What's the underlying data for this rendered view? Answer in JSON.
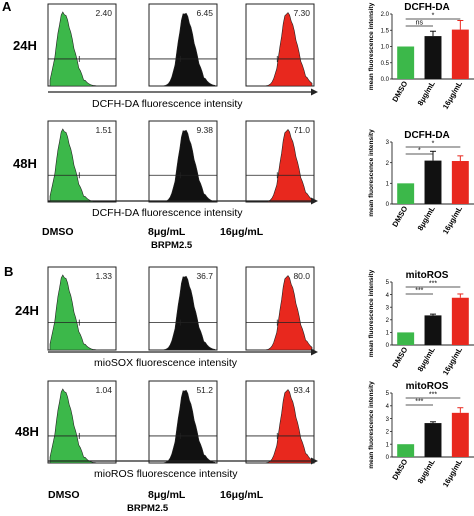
{
  "panels": [
    {
      "letter": "A",
      "compound_label": "BRPM2.5",
      "rows": [
        {
          "time": "24H",
          "xlabel": "DCFH-DA  fluorescence intensity",
          "values": [
            "2.40",
            "6.45",
            "7.30"
          ]
        },
        {
          "time": "48H",
          "xlabel": "DCFH-DA  fluorescence intensity",
          "values": [
            "1.51",
            "9.38",
            "71.0"
          ]
        }
      ]
    },
    {
      "letter": "B",
      "compound_label": "BRPM2.5",
      "rows": [
        {
          "time": "24H",
          "xlabel": "mioSOX fluorescence intensity",
          "values": [
            "1.33",
            "36.7",
            "80.0"
          ]
        },
        {
          "time": "48H",
          "xlabel": "mioROS fluorescence intensity",
          "values": [
            "1.04",
            "51.2",
            "93.4"
          ]
        }
      ]
    }
  ],
  "columns": [
    "DMSO",
    "8μg/mL",
    "16μg/mL"
  ],
  "colors": {
    "dmso": "#3cb84a",
    "low": "#111111",
    "high": "#e8281e"
  },
  "chart_data": [
    {
      "type": "bar",
      "title": "DCFH-DA",
      "ylabel": "mean fluorescence intensity",
      "categories": [
        "DMSO",
        "8μg/mL",
        "16μg/mL"
      ],
      "values": [
        1.0,
        1.32,
        1.52
      ],
      "errors": [
        0,
        0.15,
        0.28
      ],
      "ylim": [
        0,
        2
      ],
      "yticks": [
        "0.0",
        "0.5",
        "1.0",
        "1.5",
        "2.0"
      ],
      "significance": [
        {
          "from": 0,
          "to": 1,
          "label": "ns"
        },
        {
          "from": 0,
          "to": 2,
          "label": "*"
        }
      ]
    },
    {
      "type": "bar",
      "title": "DCFH-DA",
      "ylabel": "mean fluorescence intensity",
      "categories": [
        "DMSO",
        "8μg/mL",
        "16μg/mL"
      ],
      "values": [
        1.0,
        2.1,
        2.08
      ],
      "errors": [
        0,
        0.45,
        0.25
      ],
      "ylim": [
        0,
        3
      ],
      "yticks": [
        "0",
        "1",
        "2",
        "3"
      ],
      "significance": [
        {
          "from": 0,
          "to": 1,
          "label": "*"
        },
        {
          "from": 0,
          "to": 2,
          "label": "*"
        }
      ]
    },
    {
      "type": "bar",
      "title": "mitoROS",
      "ylabel": "mean fluorescence intensity",
      "categories": [
        "DMSO",
        "8μg/mL",
        "16μg/mL"
      ],
      "values": [
        1.0,
        2.35,
        3.75
      ],
      "errors": [
        0,
        0.1,
        0.3
      ],
      "ylim": [
        0,
        5
      ],
      "yticks": [
        "0",
        "1",
        "2",
        "3",
        "4",
        "5"
      ],
      "significance": [
        {
          "from": 0,
          "to": 1,
          "label": "***"
        },
        {
          "from": 0,
          "to": 2,
          "label": "***"
        }
      ]
    },
    {
      "type": "bar",
      "title": "mitoROS",
      "ylabel": "mean fluorescence intensity",
      "categories": [
        "DMSO",
        "8μg/mL",
        "16μg/mL"
      ],
      "values": [
        1.0,
        2.65,
        3.45
      ],
      "errors": [
        0,
        0.1,
        0.4
      ],
      "ylim": [
        0,
        5
      ],
      "yticks": [
        "0",
        "1",
        "2",
        "3",
        "4",
        "5"
      ],
      "significance": [
        {
          "from": 0,
          "to": 1,
          "label": "***"
        },
        {
          "from": 0,
          "to": 2,
          "label": "***"
        }
      ]
    }
  ]
}
